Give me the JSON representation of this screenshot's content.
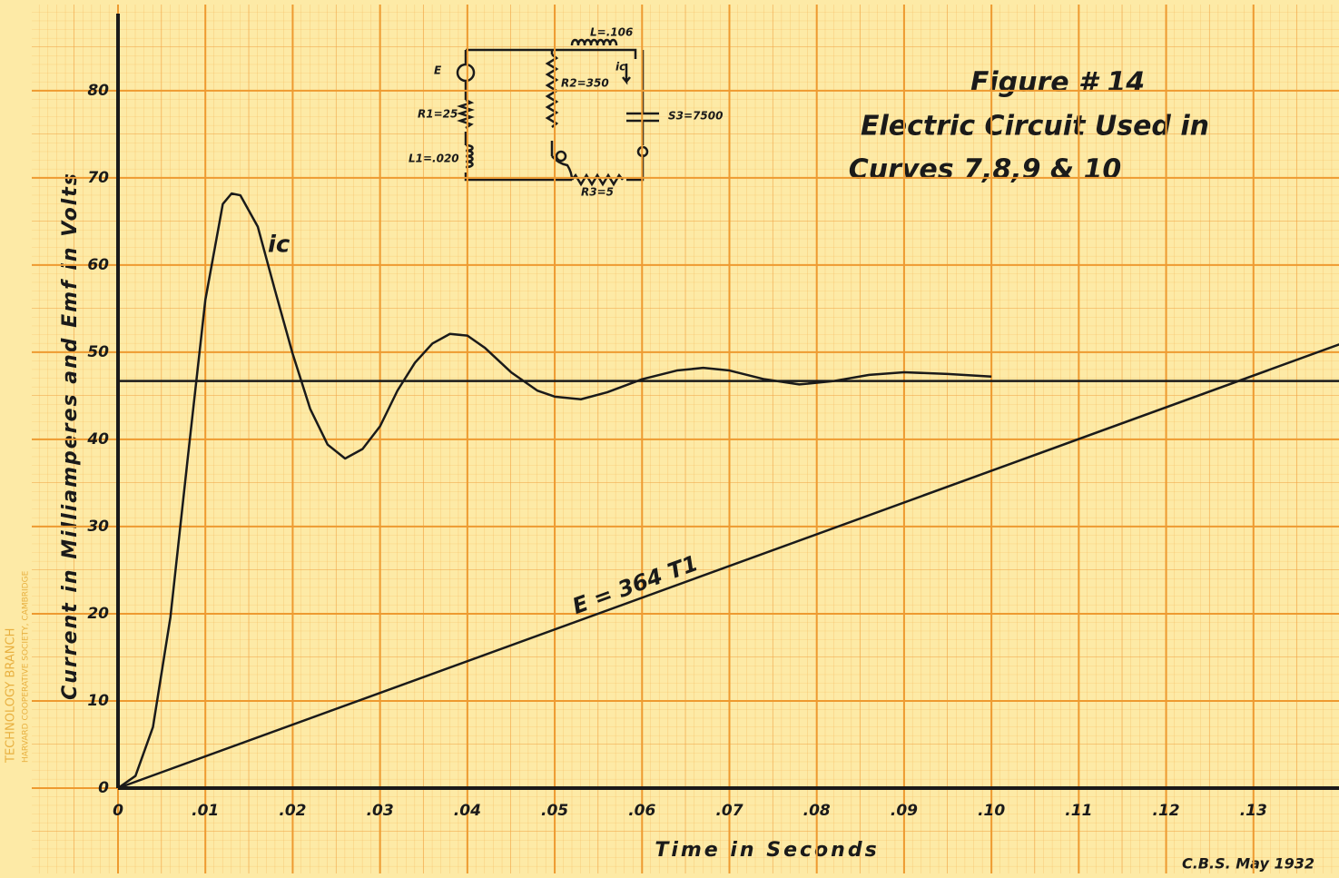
{
  "chart_data": {
    "type": "line",
    "title": "Figure # 14",
    "subtitle": [
      "Electric Circuit Used in",
      "Curves 7,8,9 & 10"
    ],
    "xlabel": "Time in Seconds",
    "ylabel": "Current in Milliamperes and Emf in Volts",
    "signature": "C.B.S. May 1932",
    "xlim": [
      0,
      0.14
    ],
    "ylim": [
      0,
      88
    ],
    "xticks": [
      0,
      {
        "value": 0.01,
        "label": ".01"
      },
      {
        "value": 0.02,
        "label": ".02"
      },
      {
        "value": 0.03,
        "label": ".03"
      },
      {
        "value": 0.04,
        "label": ".04"
      },
      {
        "value": 0.05,
        "label": ".05"
      },
      {
        "value": 0.06,
        "label": ".06"
      },
      {
        "value": 0.07,
        "label": ".07"
      },
      {
        "value": 0.08,
        "label": ".08"
      },
      {
        "value": 0.09,
        "label": ".09"
      },
      {
        "value": 0.1,
        "label": ".10"
      },
      {
        "value": 0.11,
        "label": ".11"
      },
      {
        "value": 0.12,
        "label": ".12"
      },
      {
        "value": 0.13,
        "label": ".13"
      }
    ],
    "yticks": [
      0,
      10,
      20,
      30,
      40,
      50,
      60,
      70,
      80
    ],
    "grid": true,
    "series": [
      {
        "name": "ic",
        "color": "#1a1a1a",
        "x": [
          0,
          0.002,
          0.004,
          0.006,
          0.008,
          0.01,
          0.012,
          0.013,
          0.014,
          0.016,
          0.018,
          0.02,
          0.022,
          0.024,
          0.026,
          0.028,
          0.03,
          0.032,
          0.034,
          0.036,
          0.038,
          0.04,
          0.042,
          0.045,
          0.048,
          0.05,
          0.053,
          0.056,
          0.06,
          0.064,
          0.067,
          0.07,
          0.074,
          0.078,
          0.082,
          0.086,
          0.09,
          0.095,
          0.1
        ],
        "values": [
          0,
          1.4,
          7,
          19.6,
          38,
          56,
          67,
          68.2,
          68,
          64.4,
          57,
          49.8,
          43.5,
          39.4,
          37.8,
          38.9,
          41.5,
          45.6,
          48.8,
          51,
          52.1,
          51.9,
          50.5,
          47.7,
          45.6,
          44.9,
          44.6,
          45.4,
          46.9,
          47.9,
          48.2,
          47.9,
          46.9,
          46.3,
          46.7,
          47.4,
          47.7,
          47.5,
          47.2
        ]
      },
      {
        "color": "#1a1a1a",
        "x": [
          0,
          0.14
        ],
        "values": [
          46.7,
          46.7
        ]
      },
      {
        "name": "E = 364 T1",
        "color": "#1a1a1a",
        "x": [
          0,
          0.14
        ],
        "values": [
          0,
          50.96
        ]
      }
    ]
  },
  "circuit": {
    "labels": [
      "E",
      "R1=25",
      "L1=.020",
      "R2=350",
      "L=.106",
      "ic",
      "S3=7500",
      "R3=5"
    ]
  },
  "margin": [
    "TECHNOLOGY BRANCH",
    "HARVARD COOPERATIVE SOCIETY, CAMBRIDGE"
  ]
}
